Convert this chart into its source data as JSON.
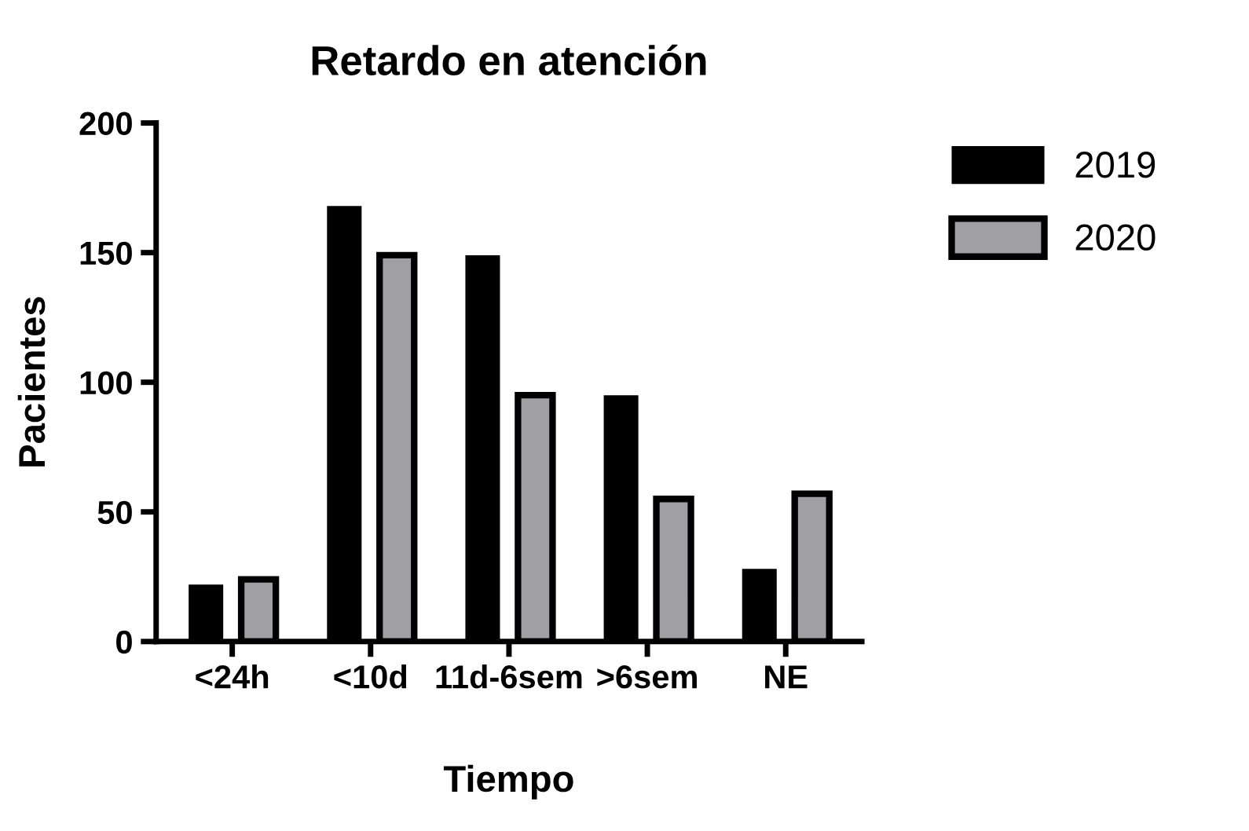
{
  "chart_data": {
    "type": "bar",
    "title": "Retardo en atención",
    "xlabel": "Tiempo",
    "ylabel": "Pacientes",
    "categories": [
      "<24h",
      "<10d",
      "11d-6sem",
      ">6sem",
      "NE"
    ],
    "series": [
      {
        "name": "2019",
        "color": "#000000",
        "values": [
          22,
          168,
          149,
          95,
          28
        ]
      },
      {
        "name": "2020",
        "color": "#a0a0a4",
        "values": [
          24,
          149,
          95,
          55,
          57
        ]
      }
    ],
    "ylim": [
      0,
      200
    ],
    "yticks": [
      0,
      50,
      100,
      150,
      200
    ],
    "grid": false,
    "legend": "top right"
  }
}
